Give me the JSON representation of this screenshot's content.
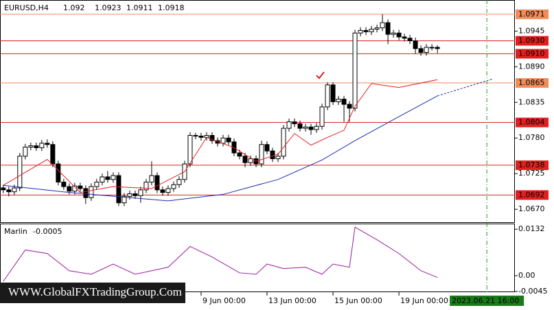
{
  "chart_data": [
    {
      "type": "candlestick",
      "title": "EURUSD,H4",
      "open": [
        1.0703,
        1.07,
        1.0697,
        1.0703,
        1.0752,
        1.0766,
        1.0768,
        1.0765,
        1.0772,
        1.077,
        1.074,
        1.0712,
        1.0705,
        1.0698,
        1.0706,
        1.0702,
        1.0688,
        1.0705,
        1.0712,
        1.072,
        1.0716,
        1.0722,
        1.068,
        1.069,
        1.0694,
        1.0691,
        1.07,
        1.0712,
        1.0722,
        1.07,
        1.0696,
        1.0702,
        1.0708,
        1.0716,
        1.074,
        1.0784,
        1.0783,
        1.0781,
        1.0784,
        1.0776,
        1.0772,
        1.078,
        1.0774,
        1.0757,
        1.0752,
        1.0742,
        1.0748,
        1.074,
        1.077,
        1.076,
        1.0748,
        1.0752,
        1.0795,
        1.0805,
        1.0802,
        1.0795,
        1.0797,
        1.0793,
        1.0798,
        1.0828,
        1.0862,
        1.0836,
        1.084,
        1.0832,
        1.0826,
        1.0942,
        1.0946,
        1.0944,
        1.0948,
        1.095,
        1.0958,
        1.094,
        1.0942,
        1.0936,
        1.0934,
        1.093,
        1.0918,
        1.0912,
        1.092,
        1.092
      ],
      "high": [
        1.0708,
        1.0705,
        1.0708,
        1.0757,
        1.0771,
        1.0773,
        1.0773,
        1.0777,
        1.0778,
        1.0775,
        1.0745,
        1.0717,
        1.071,
        1.0711,
        1.0711,
        1.0707,
        1.071,
        1.0717,
        1.0725,
        1.0729,
        1.0727,
        1.0727,
        1.0695,
        1.0699,
        1.0699,
        1.0705,
        1.0717,
        1.0744,
        1.0727,
        1.0705,
        1.0707,
        1.0713,
        1.0721,
        1.0745,
        1.0789,
        1.0788,
        1.0788,
        1.0789,
        1.0789,
        1.0781,
        1.0785,
        1.0785,
        1.0779,
        1.0762,
        1.0757,
        1.0753,
        1.0753,
        1.0776,
        1.0775,
        1.0765,
        1.0757,
        1.08,
        1.081,
        1.081,
        1.0807,
        1.0802,
        1.0802,
        1.0803,
        1.0833,
        1.0866,
        1.0866,
        1.0845,
        1.0845,
        1.0837,
        1.0947,
        1.0951,
        1.0951,
        1.0953,
        1.0955,
        1.0971,
        1.0963,
        1.0947,
        1.0947,
        1.0941,
        1.0939,
        1.0935,
        1.0923,
        1.0925,
        1.0925,
        1.0923
      ],
      "low": [
        1.0695,
        1.069,
        1.0692,
        1.0698,
        1.0747,
        1.0761,
        1.076,
        1.076,
        1.0765,
        1.0735,
        1.0707,
        1.07,
        1.0693,
        1.0693,
        1.0697,
        1.0678,
        1.0683,
        1.07,
        1.0707,
        1.0711,
        1.0711,
        1.0675,
        1.0675,
        1.0685,
        1.0686,
        1.068,
        1.0695,
        1.0707,
        1.0695,
        1.0691,
        1.0691,
        1.0697,
        1.0703,
        1.0711,
        1.0735,
        1.0778,
        1.0776,
        1.0776,
        1.0771,
        1.0767,
        1.0767,
        1.0769,
        1.0752,
        1.0747,
        1.0735,
        1.0737,
        1.0735,
        1.0735,
        1.0755,
        1.0743,
        1.0743,
        1.0747,
        1.079,
        1.0797,
        1.079,
        1.079,
        1.0785,
        1.0788,
        1.0793,
        1.0823,
        1.0831,
        1.0831,
        1.0805,
        1.0805,
        1.0821,
        1.0937,
        1.0939,
        1.0939,
        1.0943,
        1.0945,
        1.0925,
        1.0935,
        1.0931,
        1.0929,
        1.0925,
        1.091,
        1.0907,
        1.0907,
        1.0915,
        1.0911
      ],
      "close": [
        1.07,
        1.0697,
        1.0703,
        1.0752,
        1.0766,
        1.0768,
        1.0765,
        1.0772,
        1.077,
        1.074,
        1.0712,
        1.0705,
        1.0698,
        1.0706,
        1.0702,
        1.0688,
        1.0705,
        1.0712,
        1.072,
        1.0716,
        1.0722,
        1.068,
        1.069,
        1.0694,
        1.0691,
        1.07,
        1.0712,
        1.0722,
        1.07,
        1.0696,
        1.0702,
        1.0708,
        1.0716,
        1.074,
        1.0784,
        1.0783,
        1.0781,
        1.0784,
        1.0776,
        1.0772,
        1.078,
        1.0774,
        1.0757,
        1.0752,
        1.0742,
        1.0748,
        1.074,
        1.077,
        1.076,
        1.0748,
        1.0752,
        1.0795,
        1.0805,
        1.0802,
        1.0795,
        1.0797,
        1.0793,
        1.0798,
        1.0828,
        1.0862,
        1.0836,
        1.084,
        1.0832,
        1.0826,
        1.0942,
        1.0946,
        1.0944,
        1.0948,
        1.095,
        1.0958,
        1.094,
        1.0942,
        1.0936,
        1.0934,
        1.093,
        1.0918,
        1.0912,
        1.092,
        1.092,
        1.0918
      ],
      "up_color": "#ffffff",
      "down_color": "#000000",
      "series": [
        {
          "color": "#e02020",
          "x": [
            0,
            8,
            14,
            20,
            27,
            33,
            37,
            42,
            46,
            50,
            53,
            56,
            59,
            62,
            64,
            67,
            72,
            79
          ],
          "values": [
            1.0707,
            1.0747,
            1.0696,
            1.0705,
            1.0702,
            1.0728,
            1.0781,
            1.0765,
            1.0744,
            1.0755,
            1.0787,
            1.0769,
            1.0781,
            1.0792,
            1.0829,
            1.0864,
            1.0858,
            1.087
          ]
        },
        {
          "color": "#1a2ab0",
          "x": [
            0,
            12,
            30,
            40,
            50,
            58,
            64,
            72,
            79
          ],
          "values": [
            1.0707,
            1.0696,
            1.0683,
            1.0693,
            1.0716,
            1.0746,
            1.0776,
            1.0813,
            1.0845
          ]
        },
        {
          "color": "#1a2ab0",
          "dashed": true,
          "x": [
            79,
            89
          ],
          "values": [
            1.0845,
            1.0871
          ]
        }
      ],
      "levels": [
        {
          "value": 1.0971,
          "color": "#f08c5a"
        },
        {
          "value": {
            "value": 1.093,
            "label": "1.0930"
          },
          "color": "#e02020"
        },
        {
          "value": {
            "value": 1.091,
            "label": "1.0910"
          },
          "color": "#e02020"
        },
        {
          "value": 1.0865,
          "color": "#f08c5a"
        },
        {
          "value": 1.0804,
          "color": "#e02020"
        },
        {
          "value": 1.0738,
          "color": "#e02020"
        },
        {
          "value": 1.0692,
          "color": "#e02020"
        }
      ],
      "xlim": [
        -0.6,
        93.1
      ],
      "xticks": [
        {
          "value": 36,
          "label": "9 Jun 00:00"
        },
        {
          "value": 48,
          "label": "13 Jun 00:00"
        },
        {
          "value": 60,
          "label": "15 Jun 00:00"
        },
        {
          "value": 72,
          "label": "19 Jun 00:00"
        }
      ],
      "cursor": {
        "value": 88,
        "label": "2023.06.21 16:00"
      },
      "ylim": [
        1.0649,
        1.0993
      ],
      "yticks": [
        1.0945,
        {
          "value": 1.089,
          "label": "1.0890"
        },
        1.0835,
        {
          "value": 1.078,
          "label": "1.0780"
        },
        1.0725,
        {
          "value": 1.067,
          "label": "1.0670"
        }
      ],
      "watermark": "WWW.GlobalFXTradingGroup.Com"
    },
    {
      "type": "line",
      "title": "Marlin",
      "color": "#9a1a9a",
      "x": [
        0,
        4,
        8,
        12,
        16,
        20,
        24,
        30,
        34,
        38,
        43,
        46,
        48,
        51,
        55,
        58,
        60,
        63,
        64,
        68,
        72,
        76,
        79
      ],
      "values": [
        -0.0016,
        0.0073,
        0.0063,
        0.0014,
        0.0004,
        0.0033,
        0.0004,
        0.0024,
        0.0083,
        0.0053,
        0.0008,
        0.0004,
        0.0033,
        0.002,
        0.0024,
        0.0004,
        0.0033,
        0.0024,
        0.0138,
        0.0102,
        0.0063,
        0.0014,
        -0.0005
      ],
      "xlim": [
        -0.6,
        93.1
      ],
      "ylim": [
        -0.0045,
        0.0148
      ],
      "yticks": [
        0.0132,
        {
          "value": 0,
          "label": "0.00"
        },
        -0.0045
      ]
    }
  ]
}
